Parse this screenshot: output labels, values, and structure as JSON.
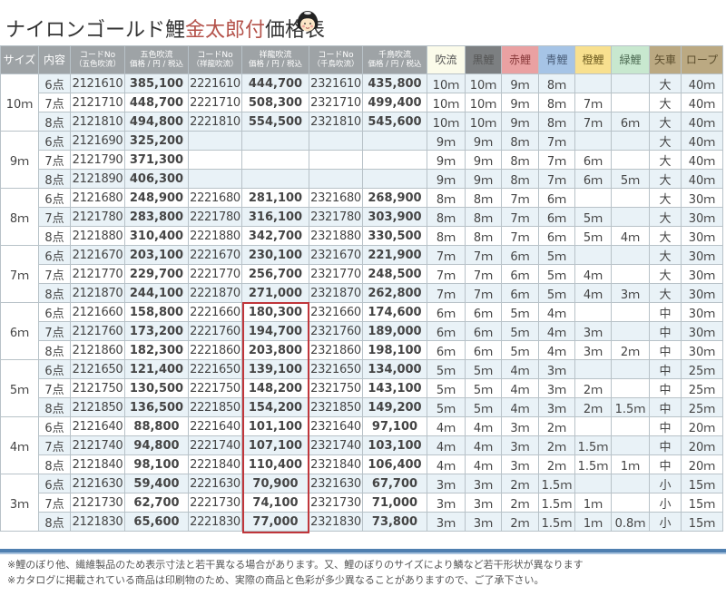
{
  "title": {
    "prefix": "ナイロンゴールド鯉",
    "accent": "金太郎付",
    "suffix": "価格表",
    "accent_color": "#b4524a",
    "mascot_icon": "kintaro-face-icon"
  },
  "headers": {
    "size": "サイズ",
    "content": "内容",
    "code1": {
      "main": "コードNo",
      "sub": "（五色吹流）"
    },
    "price1": {
      "main": "五色吹流",
      "sub": "価格 / 円 / 税込"
    },
    "code2": {
      "main": "コードNo",
      "sub": "（祥龍吹流）"
    },
    "price2": {
      "main": "祥龍吹流",
      "sub": "価格 / 円 / 税込"
    },
    "code3": {
      "main": "コードNo",
      "sub": "（千鳥吹流）"
    },
    "price3": {
      "main": "千鳥吹流",
      "sub": "価格 / 円 / 税込"
    },
    "fukinagashi": "吹流",
    "kuro": "黒鯉",
    "aka": "赤鯉",
    "ao": "青鯉",
    "daidai": "橙鯉",
    "midori": "緑鯉",
    "yaguruma": "矢車",
    "rope": "ロープ"
  },
  "header_colors": {
    "default": "#9ea3a6",
    "fukinagashi": "#fbfbea",
    "kuro": "#7c7f81",
    "aka": "#e9a1a2",
    "ao": "#a6c4e6",
    "daidai": "#f8e08f",
    "midori": "#c8e8cf",
    "yaguruma": "#bba982",
    "rope": "#bba982"
  },
  "highlight_color": "#c0363b",
  "rows": [
    {
      "size": "10ｍ",
      "content": "6点",
      "code1": "2121610",
      "price1": "385,100",
      "code2": "2221610",
      "price2": "444,700",
      "code3": "2321610",
      "price3": "435,800",
      "fuki": "10ｍ",
      "kuro": "10ｍ",
      "aka": "9ｍ",
      "ao": "8ｍ",
      "daidai": "",
      "midori": "",
      "yaguruma": "大",
      "rope": "40ｍ"
    },
    {
      "size": "",
      "content": "7点",
      "code1": "2121710",
      "price1": "448,700",
      "code2": "2221710",
      "price2": "508,300",
      "code3": "2321710",
      "price3": "499,400",
      "fuki": "10ｍ",
      "kuro": "10ｍ",
      "aka": "9ｍ",
      "ao": "8ｍ",
      "daidai": "7ｍ",
      "midori": "",
      "yaguruma": "大",
      "rope": "40ｍ"
    },
    {
      "size": "",
      "content": "8点",
      "code1": "2121810",
      "price1": "494,800",
      "code2": "2221810",
      "price2": "554,500",
      "code3": "2321810",
      "price3": "545,600",
      "fuki": "10ｍ",
      "kuro": "10ｍ",
      "aka": "9ｍ",
      "ao": "8ｍ",
      "daidai": "7ｍ",
      "midori": "6ｍ",
      "yaguruma": "大",
      "rope": "40ｍ"
    },
    {
      "size": "9ｍ",
      "content": "6点",
      "code1": "2121690",
      "price1": "325,200",
      "code2": "",
      "price2": "",
      "code3": "",
      "price3": "",
      "fuki": "9ｍ",
      "kuro": "9ｍ",
      "aka": "8ｍ",
      "ao": "7ｍ",
      "daidai": "",
      "midori": "",
      "yaguruma": "大",
      "rope": "40ｍ"
    },
    {
      "size": "",
      "content": "7点",
      "code1": "2121790",
      "price1": "371,300",
      "code2": "",
      "price2": "",
      "code3": "",
      "price3": "",
      "fuki": "9ｍ",
      "kuro": "9ｍ",
      "aka": "8ｍ",
      "ao": "7ｍ",
      "daidai": "6ｍ",
      "midori": "",
      "yaguruma": "大",
      "rope": "40ｍ"
    },
    {
      "size": "",
      "content": "8点",
      "code1": "2121890",
      "price1": "406,300",
      "code2": "",
      "price2": "",
      "code3": "",
      "price3": "",
      "fuki": "9ｍ",
      "kuro": "9ｍ",
      "aka": "8ｍ",
      "ao": "7ｍ",
      "daidai": "6ｍ",
      "midori": "5ｍ",
      "yaguruma": "大",
      "rope": "40ｍ"
    },
    {
      "size": "8ｍ",
      "content": "6点",
      "code1": "2121680",
      "price1": "248,900",
      "code2": "2221680",
      "price2": "281,100",
      "code3": "2321680",
      "price3": "268,900",
      "fuki": "8ｍ",
      "kuro": "8ｍ",
      "aka": "7ｍ",
      "ao": "6ｍ",
      "daidai": "",
      "midori": "",
      "yaguruma": "大",
      "rope": "30ｍ"
    },
    {
      "size": "",
      "content": "7点",
      "code1": "2121780",
      "price1": "283,800",
      "code2": "2221780",
      "price2": "316,100",
      "code3": "2321780",
      "price3": "303,900",
      "fuki": "8ｍ",
      "kuro": "8ｍ",
      "aka": "7ｍ",
      "ao": "6ｍ",
      "daidai": "5ｍ",
      "midori": "",
      "yaguruma": "大",
      "rope": "30ｍ"
    },
    {
      "size": "",
      "content": "8点",
      "code1": "2121880",
      "price1": "310,400",
      "code2": "2221880",
      "price2": "342,700",
      "code3": "2321880",
      "price3": "330,500",
      "fuki": "8ｍ",
      "kuro": "8ｍ",
      "aka": "7ｍ",
      "ao": "6ｍ",
      "daidai": "5ｍ",
      "midori": "4ｍ",
      "yaguruma": "大",
      "rope": "30ｍ"
    },
    {
      "size": "7ｍ",
      "content": "6点",
      "code1": "2121670",
      "price1": "203,100",
      "code2": "2221670",
      "price2": "230,100",
      "code3": "2321670",
      "price3": "221,900",
      "fuki": "7ｍ",
      "kuro": "7ｍ",
      "aka": "6ｍ",
      "ao": "5ｍ",
      "daidai": "",
      "midori": "",
      "yaguruma": "大",
      "rope": "30ｍ"
    },
    {
      "size": "",
      "content": "7点",
      "code1": "2121770",
      "price1": "229,700",
      "code2": "2221770",
      "price2": "256,700",
      "code3": "2321770",
      "price3": "248,500",
      "fuki": "7ｍ",
      "kuro": "7ｍ",
      "aka": "6ｍ",
      "ao": "5ｍ",
      "daidai": "4ｍ",
      "midori": "",
      "yaguruma": "大",
      "rope": "30ｍ"
    },
    {
      "size": "",
      "content": "8点",
      "code1": "2121870",
      "price1": "244,100",
      "code2": "2221870",
      "price2": "271,000",
      "code3": "2321870",
      "price3": "262,800",
      "fuki": "7ｍ",
      "kuro": "7ｍ",
      "aka": "6ｍ",
      "ao": "5ｍ",
      "daidai": "4ｍ",
      "midori": "3ｍ",
      "yaguruma": "大",
      "rope": "30ｍ"
    },
    {
      "size": "6ｍ",
      "content": "6点",
      "code1": "2121660",
      "price1": "158,800",
      "code2": "2221660",
      "price2": "180,300",
      "code3": "2321660",
      "price3": "174,600",
      "fuki": "6ｍ",
      "kuro": "6ｍ",
      "aka": "5ｍ",
      "ao": "4ｍ",
      "daidai": "",
      "midori": "",
      "yaguruma": "中",
      "rope": "30ｍ"
    },
    {
      "size": "",
      "content": "7点",
      "code1": "2121760",
      "price1": "173,200",
      "code2": "2221760",
      "price2": "194,700",
      "code3": "2321760",
      "price3": "189,000",
      "fuki": "6ｍ",
      "kuro": "6ｍ",
      "aka": "5ｍ",
      "ao": "4ｍ",
      "daidai": "3ｍ",
      "midori": "",
      "yaguruma": "中",
      "rope": "30ｍ"
    },
    {
      "size": "",
      "content": "8点",
      "code1": "2121860",
      "price1": "182,300",
      "code2": "2221860",
      "price2": "203,800",
      "code3": "2321860",
      "price3": "198,100",
      "fuki": "6ｍ",
      "kuro": "6ｍ",
      "aka": "5ｍ",
      "ao": "4ｍ",
      "daidai": "3ｍ",
      "midori": "2ｍ",
      "yaguruma": "中",
      "rope": "30ｍ"
    },
    {
      "size": "5ｍ",
      "content": "6点",
      "code1": "2121650",
      "price1": "121,400",
      "code2": "2221650",
      "price2": "139,100",
      "code3": "2321650",
      "price3": "134,000",
      "fuki": "5ｍ",
      "kuro": "5ｍ",
      "aka": "4ｍ",
      "ao": "3ｍ",
      "daidai": "",
      "midori": "",
      "yaguruma": "中",
      "rope": "25ｍ"
    },
    {
      "size": "",
      "content": "7点",
      "code1": "2121750",
      "price1": "130,500",
      "code2": "2221750",
      "price2": "148,200",
      "code3": "2321750",
      "price3": "143,100",
      "fuki": "5ｍ",
      "kuro": "5ｍ",
      "aka": "4ｍ",
      "ao": "3ｍ",
      "daidai": "2ｍ",
      "midori": "",
      "yaguruma": "中",
      "rope": "25ｍ"
    },
    {
      "size": "",
      "content": "8点",
      "code1": "2121850",
      "price1": "136,500",
      "code2": "2221850",
      "price2": "154,200",
      "code3": "2321850",
      "price3": "149,200",
      "fuki": "5ｍ",
      "kuro": "5ｍ",
      "aka": "4ｍ",
      "ao": "3ｍ",
      "daidai": "2ｍ",
      "midori": "1.5ｍ",
      "yaguruma": "中",
      "rope": "25ｍ"
    },
    {
      "size": "4ｍ",
      "content": "6点",
      "code1": "2121640",
      "price1": "88,800",
      "code2": "2221640",
      "price2": "101,100",
      "code3": "2321640",
      "price3": "97,100",
      "fuki": "4ｍ",
      "kuro": "4ｍ",
      "aka": "3ｍ",
      "ao": "2ｍ",
      "daidai": "",
      "midori": "",
      "yaguruma": "中",
      "rope": "20ｍ"
    },
    {
      "size": "",
      "content": "7点",
      "code1": "2121740",
      "price1": "94,800",
      "code2": "2221740",
      "price2": "107,100",
      "code3": "2321740",
      "price3": "103,100",
      "fuki": "4ｍ",
      "kuro": "4ｍ",
      "aka": "3ｍ",
      "ao": "2ｍ",
      "daidai": "1.5ｍ",
      "midori": "",
      "yaguruma": "中",
      "rope": "20ｍ"
    },
    {
      "size": "",
      "content": "8点",
      "code1": "2121840",
      "price1": "98,100",
      "code2": "2221840",
      "price2": "110,400",
      "code3": "2321840",
      "price3": "106,400",
      "fuki": "4ｍ",
      "kuro": "4ｍ",
      "aka": "3ｍ",
      "ao": "2ｍ",
      "daidai": "1.5ｍ",
      "midori": "1ｍ",
      "yaguruma": "中",
      "rope": "20ｍ"
    },
    {
      "size": "3ｍ",
      "content": "6点",
      "code1": "2121630",
      "price1": "59,400",
      "code2": "2221630",
      "price2": "70,900",
      "code3": "2321630",
      "price3": "67,700",
      "fuki": "3ｍ",
      "kuro": "3ｍ",
      "aka": "2ｍ",
      "ao": "1.5ｍ",
      "daidai": "",
      "midori": "",
      "yaguruma": "小",
      "rope": "15ｍ"
    },
    {
      "size": "",
      "content": "7点",
      "code1": "2121730",
      "price1": "62,700",
      "code2": "2221730",
      "price2": "74,100",
      "code3": "2321730",
      "price3": "71,000",
      "fuki": "3ｍ",
      "kuro": "3ｍ",
      "aka": "2ｍ",
      "ao": "1.5ｍ",
      "daidai": "1ｍ",
      "midori": "",
      "yaguruma": "小",
      "rope": "15ｍ"
    },
    {
      "size": "",
      "content": "8点",
      "code1": "2121830",
      "price1": "65,600",
      "code2": "2221830",
      "price2": "77,000",
      "code3": "2321830",
      "price3": "73,800",
      "fuki": "3ｍ",
      "kuro": "3ｍ",
      "aka": "2ｍ",
      "ao": "1.5ｍ",
      "daidai": "1ｍ",
      "midori": "0.8ｍ",
      "yaguruma": "小",
      "rope": "15ｍ"
    }
  ],
  "notes": [
    "※鯉のぼり他、繊維製品のため表示寸法と若干異なる場合があります。又、鯉のぼりのサイズにより鱗など若干形状が異なります",
    "※カタログに掲載されている商品は印刷物のため、実際の商品と色彩が多少異なることがありますので、ご了承下さい。"
  ]
}
